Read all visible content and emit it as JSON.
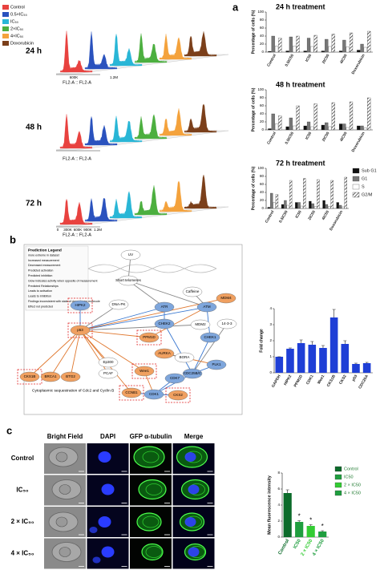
{
  "panels": [
    "a",
    "b",
    "c"
  ],
  "flow_cytometry": {
    "legend": [
      {
        "label": "Control",
        "color": "#e8423f"
      },
      {
        "label": "0.5×IC₅₀",
        "color": "#2a52be"
      },
      {
        "label": "IC₅₀",
        "color": "#29b6d6"
      },
      {
        "label": "2×IC₅₀",
        "color": "#4caf3f"
      },
      {
        "label": "4×IC₅₀",
        "color": "#f4a23c"
      },
      {
        "label": "Doxorubicin",
        "color": "#7b3f1a"
      }
    ],
    "rows": [
      {
        "label": "24 h",
        "axis_label": "FL2-A :: FL2-A",
        "ticks": [
          "600K",
          "1.2M"
        ]
      },
      {
        "label": "48 h",
        "axis_label": "FL2-A :: FL2-A",
        "ticks": []
      },
      {
        "label": "72 h",
        "axis_label": "FL2-A :: FL2-A",
        "ticks": [
          "0",
          "300K",
          "600K",
          "900K",
          "1.2M"
        ]
      }
    ]
  },
  "pathway": {
    "legend": [
      "Prediction Legend",
      "more extreme in dataset",
      "Increased measurement",
      "Decreased measurement",
      "Predicted activation",
      "Predicted inhibition",
      "Glow indicates activity when opposite of measurement",
      "Predicted Relationships",
      "Leads to activation",
      "Leads to inhibition",
      "Findings inconsistent with state of downstream molecule",
      "Effect not predicted"
    ],
    "nodes": [
      {
        "label": "UV",
        "state": "none"
      },
      {
        "label": "Short telomeres",
        "state": "none"
      },
      {
        "label": "DNA-PK",
        "state": "none"
      },
      {
        "label": "ATR",
        "state": "inhibition"
      },
      {
        "label": "Caffeine",
        "state": "none"
      },
      {
        "label": "ATM",
        "state": "inhibition"
      },
      {
        "label": "MDM4",
        "state": "activation"
      },
      {
        "label": "MDM2",
        "state": "none"
      },
      {
        "label": "14-3-3",
        "state": "none"
      },
      {
        "label": "HIPK2",
        "state": "inhibition",
        "highlighted": true
      },
      {
        "label": "p53",
        "state": "activation",
        "highlighted": true
      },
      {
        "label": "PPM1D",
        "state": "activation",
        "highlighted": true
      },
      {
        "label": "CHEK2",
        "state": "inhibition"
      },
      {
        "label": "CHEK1",
        "state": "inhibition"
      },
      {
        "label": "AURKA",
        "state": "activation"
      },
      {
        "label": "BORA",
        "state": "none"
      },
      {
        "label": "PLK1",
        "state": "inhibition"
      },
      {
        "label": "CDC25B/C",
        "state": "inhibition"
      },
      {
        "label": "CKS1B",
        "state": "activation",
        "highlighted": true
      },
      {
        "label": "BRCA1",
        "state": "activation"
      },
      {
        "label": "BTG2",
        "state": "activation"
      },
      {
        "label": "Ep300",
        "state": "none"
      },
      {
        "label": "PCAF",
        "state": "none"
      },
      {
        "label": "CDK7",
        "state": "inhibition"
      },
      {
        "label": "CDK1",
        "state": "inhibition"
      },
      {
        "label": "CCNB1",
        "state": "activation",
        "highlighted": true
      },
      {
        "label": "CKS2",
        "state": "activation",
        "highlighted": true
      },
      {
        "label": "Wee1",
        "state": "activation",
        "highlighted": true
      }
    ],
    "caption": "Cytoplasmic sequestration of Cdc2 and Cyclin B"
  },
  "microscopy": {
    "columns": [
      "Bright Field",
      "DAPI",
      "GFP α-tubulin",
      "Merge"
    ],
    "rows": [
      "Control",
      "IC₅₀",
      "2 × IC₅₀",
      "4 × IC₅₀"
    ]
  },
  "chart_data": [
    {
      "type": "bar",
      "title": "24 h treatment",
      "y_label": "Percentage of cells (%)",
      "categories": [
        "Control",
        "0.5IC50",
        "IC50",
        "2IC50",
        "4IC50",
        "Doxorubicin"
      ],
      "series": [
        {
          "color": "#111111",
          "values": [
            2,
            3,
            3,
            3,
            3,
            5
          ]
        },
        {
          "color": "#777777",
          "values": [
            40,
            38,
            35,
            32,
            30,
            20
          ]
        },
        {
          "color": "#ffffff",
          "values": [
            15,
            15,
            14,
            14,
            13,
            12
          ]
        },
        {
          "color": "#333333",
          "hatch": true,
          "values": [
            35,
            40,
            42,
            45,
            48,
            52
          ]
        }
      ],
      "ylim": [
        0,
        100
      ],
      "yticks": [
        0,
        20,
        40,
        60,
        80,
        100
      ]
    },
    {
      "type": "bar",
      "title": "48 h treatment",
      "y_label": "Percentage of cells (%)",
      "categories": [
        "Control",
        "0.5IC50",
        "IC50",
        "2IC50",
        "4IC50",
        "Doxorubicin"
      ],
      "series": [
        {
          "color": "#111111",
          "values": [
            3,
            8,
            10,
            12,
            15,
            10
          ]
        },
        {
          "color": "#777777",
          "values": [
            40,
            30,
            20,
            18,
            15,
            10
          ]
        },
        {
          "color": "#ffffff",
          "values": [
            15,
            10,
            8,
            8,
            6,
            5
          ]
        },
        {
          "color": "#333333",
          "hatch": true,
          "values": [
            35,
            60,
            65,
            68,
            70,
            80
          ]
        }
      ],
      "ylim": [
        0,
        100
      ],
      "yticks": [
        0,
        20,
        40,
        60,
        80,
        100
      ]
    },
    {
      "type": "bar",
      "title": "72 h treatment",
      "y_label": "Percentage of cells (%)",
      "categories": [
        "Control",
        "0.5IC50",
        "IC50",
        "2IC50",
        "4IC50",
        "Doxorubicin"
      ],
      "series": [
        {
          "name": "Sub G1",
          "color": "#111111",
          "values": [
            3,
            10,
            15,
            18,
            20,
            15
          ]
        },
        {
          "name": "G1",
          "color": "#777777",
          "values": [
            38,
            20,
            15,
            12,
            10,
            8
          ]
        },
        {
          "name": "S",
          "color": "#ffffff",
          "values": [
            15,
            8,
            6,
            5,
            5,
            4
          ]
        },
        {
          "name": "G2/M",
          "color": "#333333",
          "hatch": true,
          "values": [
            35,
            70,
            75,
            72,
            70,
            78
          ]
        }
      ],
      "ylim": [
        0,
        100
      ],
      "yticks": [
        0,
        20,
        40,
        60,
        80,
        100
      ],
      "legend": "right"
    },
    {
      "type": "bar",
      "y_label": "Fold change",
      "categories": [
        "GAPDH",
        "HIPK2",
        "PPM1D",
        "CDK1",
        "Wee1",
        "CKS1B",
        "CKS2",
        "p53",
        "CDC25A"
      ],
      "values": [
        1,
        1.5,
        1.85,
        1.75,
        1.55,
        3.45,
        1.8,
        0.55,
        0.6
      ],
      "errors": [
        0,
        0.05,
        0.2,
        0.2,
        0.15,
        0.5,
        0.2,
        0.05,
        0.05
      ],
      "color": "#1f3fd6",
      "ylim": [
        0,
        4
      ],
      "yticks": [
        0,
        1,
        2,
        3,
        4
      ]
    },
    {
      "type": "bar",
      "y_label": "Mean fluorescence intensity",
      "categories": [
        "Control",
        "IC50",
        "2 × IC50",
        "4 × IC50"
      ],
      "values": [
        5.5,
        1.9,
        1.4,
        0.7
      ],
      "errors": [
        0.4,
        0.15,
        0.15,
        0.1
      ],
      "significance": [
        null,
        "*",
        "*",
        "*"
      ],
      "colors": [
        "#0b6b2a",
        "#1f9e3f",
        "#33cc33",
        "#1f9e3f"
      ],
      "legend_labels": [
        "Control",
        "IC50",
        "2 × IC50",
        "4 × IC50"
      ],
      "ylim": [
        0,
        8
      ],
      "yticks": [
        0,
        2,
        4,
        6,
        8
      ],
      "legend": "upper right"
    }
  ]
}
